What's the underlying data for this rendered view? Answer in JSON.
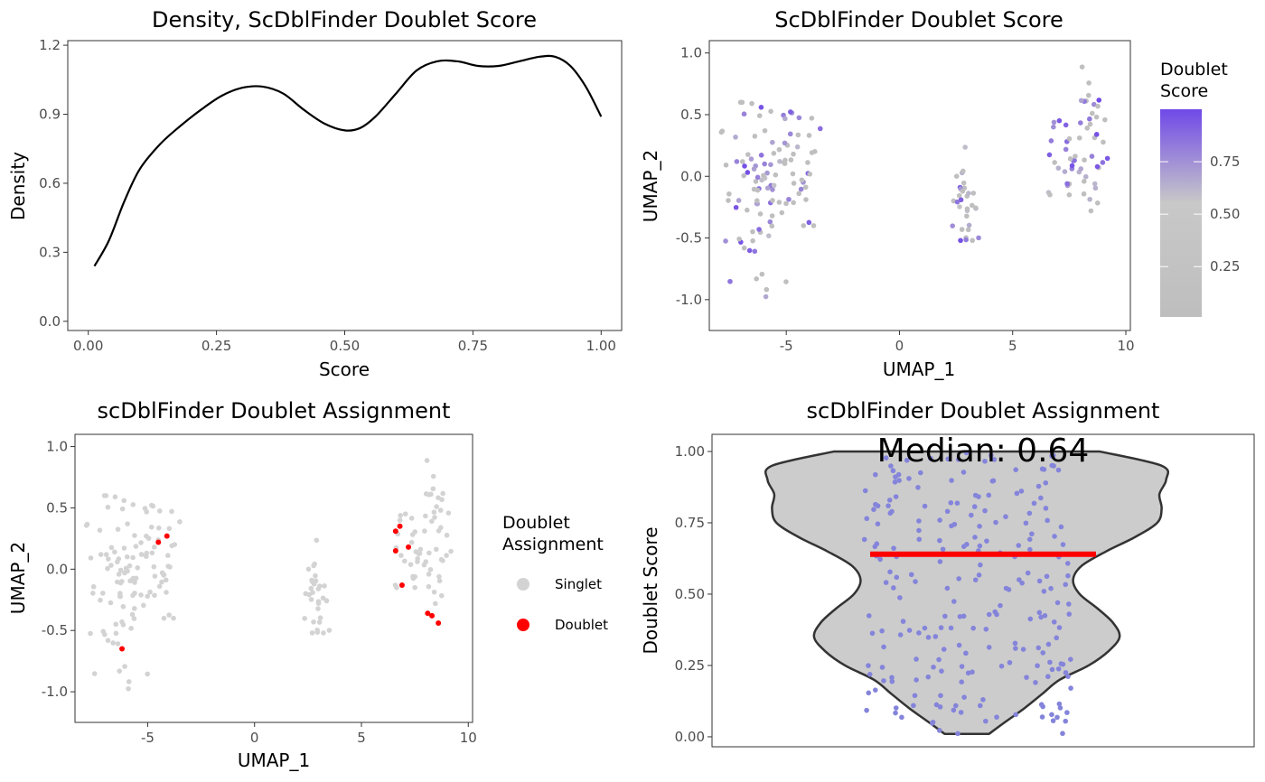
{
  "chart_data": [
    {
      "type": "line",
      "title": "Density, ScDblFinder Doublet Score",
      "xlabel": "Score",
      "ylabel": "Density",
      "xlim": [
        -0.04,
        1.04
      ],
      "ylim": [
        -0.04,
        1.22
      ],
      "xticks": [
        0.0,
        0.25,
        0.5,
        0.75,
        1.0
      ],
      "xtick_labels": [
        "0.00",
        "0.25",
        "0.50",
        "0.75",
        "1.00"
      ],
      "yticks": [
        0.0,
        0.3,
        0.6,
        0.9,
        1.2
      ],
      "ytick_labels": [
        "0.0",
        "0.3",
        "0.6",
        "0.9",
        "1.2"
      ],
      "x": [
        0.012,
        0.04,
        0.07,
        0.1,
        0.14,
        0.18,
        0.22,
        0.26,
        0.3,
        0.34,
        0.38,
        0.42,
        0.46,
        0.5,
        0.53,
        0.56,
        0.6,
        0.64,
        0.68,
        0.72,
        0.76,
        0.8,
        0.84,
        0.88,
        0.91,
        0.94,
        0.97,
        1.0
      ],
      "y": [
        0.24,
        0.35,
        0.52,
        0.66,
        0.77,
        0.85,
        0.92,
        0.98,
        1.015,
        1.02,
        0.99,
        0.92,
        0.86,
        0.83,
        0.84,
        0.89,
        0.99,
        1.09,
        1.13,
        1.13,
        1.11,
        1.11,
        1.13,
        1.15,
        1.15,
        1.11,
        1.02,
        0.89
      ],
      "grid": false
    },
    {
      "type": "scatter",
      "title": "ScDblFinder Doublet Score",
      "xlabel": "UMAP_1",
      "ylabel": "UMAP_2",
      "xlim": [
        -8.4,
        10.2
      ],
      "ylim": [
        -1.25,
        1.1
      ],
      "xticks": [
        -5,
        0,
        5,
        10
      ],
      "xtick_labels": [
        "-5",
        "0",
        "5",
        "10"
      ],
      "yticks": [
        -1.0,
        -0.5,
        0.0,
        0.5,
        1.0
      ],
      "ytick_labels": [
        "-1.0",
        "-0.5",
        "0.0",
        "0.5",
        "1.0"
      ],
      "color_by": "Doublet Score",
      "legend": {
        "title_lines": [
          "Doublet",
          "Score"
        ],
        "ticks": [
          0.75,
          0.5,
          0.25
        ],
        "tick_labels": [
          "0.75",
          "0.50",
          "0.25"
        ],
        "range": [
          0.01,
          1.0
        ],
        "colors": [
          "#bebebe",
          "#c8c8c8",
          "#7049e8"
        ],
        "position": "right"
      },
      "grid": false
    },
    {
      "type": "scatter",
      "title": "scDblFinder Doublet Assignment",
      "xlabel": "UMAP_1",
      "ylabel": "UMAP_2",
      "xlim": [
        -8.4,
        10.2
      ],
      "ylim": [
        -1.25,
        1.1
      ],
      "xticks": [
        -5,
        0,
        5,
        10
      ],
      "xtick_labels": [
        "-5",
        "0",
        "5",
        "10"
      ],
      "yticks": [
        -1.0,
        -0.5,
        0.0,
        0.5,
        1.0
      ],
      "ytick_labels": [
        "-1.0",
        "-0.5",
        "0.0",
        "0.5",
        "1.0"
      ],
      "color_by": "Doublet Assignment",
      "legend": {
        "title_lines": [
          "Doublet",
          "Assignment"
        ],
        "entries": [
          {
            "name": "Singlet",
            "color": "#d3d3d3"
          },
          {
            "name": "Doublet",
            "color": "#ff0000"
          }
        ],
        "position": "right"
      },
      "grid": false
    },
    {
      "type": "violin",
      "title": "scDblFinder Doublet Assignment",
      "xlabel": "",
      "ylabel": "Doublet Score",
      "ylim": [
        -0.035,
        1.06
      ],
      "yticks": [
        0.0,
        0.25,
        0.5,
        0.75,
        1.0
      ],
      "ytick_labels": [
        "0.00",
        "0.25",
        "0.50",
        "0.75",
        "1.00"
      ],
      "median": 0.64,
      "median_label": "Median: 0.64",
      "violin_profile": {
        "y": [
          0.01,
          0.05,
          0.1,
          0.15,
          0.2,
          0.25,
          0.3,
          0.35,
          0.4,
          0.45,
          0.5,
          0.55,
          0.6,
          0.65,
          0.7,
          0.75,
          0.8,
          0.85,
          0.9,
          0.95,
          1.0
        ],
        "half_width": [
          0.1,
          0.17,
          0.26,
          0.34,
          0.42,
          0.55,
          0.64,
          0.69,
          0.66,
          0.59,
          0.51,
          0.48,
          0.52,
          0.63,
          0.76,
          0.86,
          0.88,
          0.87,
          0.9,
          0.88,
          0.6
        ]
      },
      "fill": "#cccccc",
      "median_color": "#ff0000",
      "point_color": "#8484db",
      "grid": false
    }
  ]
}
